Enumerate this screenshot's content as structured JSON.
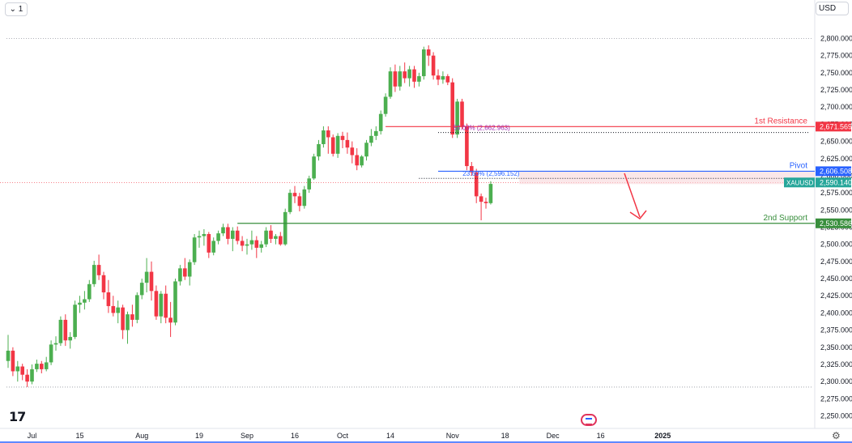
{
  "toolbar": {
    "interval_label": "⌄ 1",
    "currency_label": "USD"
  },
  "chart_data": {
    "type": "candlestick",
    "symbol": "XAUUSD",
    "y_axis": {
      "ylim": [
        2240,
        2810
      ],
      "ticks": [
        2250,
        2275,
        2300,
        2325,
        2350,
        2375,
        2400,
        2425,
        2450,
        2475,
        2500,
        2525,
        2550,
        2575,
        2600,
        2625,
        2650,
        2675,
        2700,
        2725,
        2750,
        2775,
        2800
      ],
      "tick_labels": [
        "2,250.000",
        "2,275.000",
        "2,300.000",
        "2,325.000",
        "2,350.000",
        "2,375.000",
        "2,400.000",
        "2,425.000",
        "2,450.000",
        "2,475.000",
        "2,500.000",
        "2,525.000",
        "2,550.000",
        "2,575.000",
        "2,600.000",
        "2,625.000",
        "2,650.000",
        "2,675.000",
        "2,700.000",
        "2,725.000",
        "2,750.000",
        "2,775.000",
        "2,800.000"
      ]
    },
    "x_axis": {
      "ticks": [
        {
          "label": "Jul",
          "index": 5
        },
        {
          "label": "15",
          "index": 15
        },
        {
          "label": "Aug",
          "index": 28
        },
        {
          "label": "19",
          "index": 40
        },
        {
          "label": "Sep",
          "index": 50
        },
        {
          "label": "16",
          "index": 60
        },
        {
          "label": "Oct",
          "index": 70
        },
        {
          "label": "14",
          "index": 80
        },
        {
          "label": "Nov",
          "index": 93
        },
        {
          "label": "18",
          "index": 104
        },
        {
          "label": "Dec",
          "index": 114
        },
        {
          "label": "16",
          "index": 124
        },
        {
          "label": "2025",
          "index": 137
        }
      ],
      "bold_labels": [
        "2025"
      ]
    },
    "candles": [
      [
        2330,
        2368,
        2320,
        2345
      ],
      [
        2345,
        2350,
        2308,
        2315
      ],
      [
        2315,
        2330,
        2300,
        2322
      ],
      [
        2322,
        2326,
        2302,
        2310
      ],
      [
        2310,
        2318,
        2292,
        2300
      ],
      [
        2300,
        2325,
        2296,
        2318
      ],
      [
        2318,
        2332,
        2314,
        2326
      ],
      [
        2326,
        2330,
        2312,
        2318
      ],
      [
        2318,
        2336,
        2315,
        2328
      ],
      [
        2328,
        2360,
        2324,
        2354
      ],
      [
        2354,
        2366,
        2345,
        2356
      ],
      [
        2356,
        2395,
        2352,
        2390
      ],
      [
        2390,
        2398,
        2352,
        2360
      ],
      [
        2360,
        2372,
        2348,
        2365
      ],
      [
        2365,
        2418,
        2362,
        2412
      ],
      [
        2412,
        2425,
        2400,
        2415
      ],
      [
        2415,
        2432,
        2405,
        2420
      ],
      [
        2420,
        2448,
        2416,
        2442
      ],
      [
        2442,
        2476,
        2438,
        2470
      ],
      [
        2470,
        2485,
        2448,
        2455
      ],
      [
        2455,
        2460,
        2420,
        2430
      ],
      [
        2430,
        2448,
        2400,
        2410
      ],
      [
        2410,
        2425,
        2395,
        2400
      ],
      [
        2400,
        2418,
        2385,
        2408
      ],
      [
        2408,
        2412,
        2362,
        2375
      ],
      [
        2375,
        2402,
        2355,
        2398
      ],
      [
        2398,
        2412,
        2380,
        2390
      ],
      [
        2390,
        2430,
        2385,
        2426
      ],
      [
        2426,
        2450,
        2420,
        2444
      ],
      [
        2444,
        2480,
        2430,
        2460
      ],
      [
        2460,
        2475,
        2418,
        2432
      ],
      [
        2432,
        2440,
        2390,
        2395
      ],
      [
        2395,
        2432,
        2385,
        2428
      ],
      [
        2428,
        2440,
        2385,
        2393
      ],
      [
        2393,
        2416,
        2365,
        2386
      ],
      [
        2386,
        2450,
        2382,
        2446
      ],
      [
        2446,
        2470,
        2440,
        2465
      ],
      [
        2465,
        2480,
        2448,
        2453
      ],
      [
        2453,
        2478,
        2440,
        2474
      ],
      [
        2474,
        2515,
        2470,
        2510
      ],
      [
        2510,
        2520,
        2495,
        2512
      ],
      [
        2512,
        2522,
        2498,
        2515
      ],
      [
        2515,
        2518,
        2480,
        2488
      ],
      [
        2488,
        2510,
        2484,
        2505
      ],
      [
        2505,
        2520,
        2500,
        2516
      ],
      [
        2516,
        2530,
        2512,
        2525
      ],
      [
        2525,
        2530,
        2500,
        2508
      ],
      [
        2508,
        2525,
        2490,
        2520
      ],
      [
        2520,
        2526,
        2500,
        2505
      ],
      [
        2505,
        2512,
        2490,
        2498
      ],
      [
        2498,
        2508,
        2485,
        2500
      ],
      [
        2500,
        2520,
        2492,
        2506
      ],
      [
        2506,
        2512,
        2480,
        2495
      ],
      [
        2495,
        2505,
        2488,
        2500
      ],
      [
        2500,
        2525,
        2496,
        2520
      ],
      [
        2520,
        2528,
        2502,
        2508
      ],
      [
        2508,
        2515,
        2500,
        2512
      ],
      [
        2512,
        2518,
        2498,
        2500
      ],
      [
        2500,
        2552,
        2498,
        2547
      ],
      [
        2547,
        2580,
        2544,
        2575
      ],
      [
        2575,
        2585,
        2560,
        2570
      ],
      [
        2570,
        2575,
        2548,
        2556
      ],
      [
        2556,
        2585,
        2552,
        2580
      ],
      [
        2580,
        2600,
        2575,
        2596
      ],
      [
        2596,
        2632,
        2594,
        2628
      ],
      [
        2628,
        2652,
        2622,
        2646
      ],
      [
        2646,
        2672,
        2641,
        2666
      ],
      [
        2666,
        2672,
        2632,
        2656
      ],
      [
        2656,
        2660,
        2628,
        2632
      ],
      [
        2632,
        2662,
        2626,
        2658
      ],
      [
        2658,
        2664,
        2640,
        2652
      ],
      [
        2652,
        2663,
        2632,
        2641
      ],
      [
        2641,
        2650,
        2618,
        2630
      ],
      [
        2630,
        2640,
        2608,
        2615
      ],
      [
        2615,
        2630,
        2612,
        2628
      ],
      [
        2628,
        2652,
        2622,
        2648
      ],
      [
        2648,
        2668,
        2643,
        2658
      ],
      [
        2658,
        2672,
        2652,
        2665
      ],
      [
        2665,
        2695,
        2660,
        2690
      ],
      [
        2690,
        2720,
        2686,
        2715
      ],
      [
        2715,
        2758,
        2712,
        2752
      ],
      [
        2752,
        2762,
        2722,
        2730
      ],
      [
        2730,
        2760,
        2724,
        2752
      ],
      [
        2752,
        2765,
        2735,
        2742
      ],
      [
        2742,
        2760,
        2730,
        2755
      ],
      [
        2755,
        2760,
        2728,
        2737
      ],
      [
        2737,
        2750,
        2730,
        2745
      ],
      [
        2745,
        2788,
        2740,
        2784
      ],
      [
        2784,
        2790,
        2760,
        2775
      ],
      [
        2775,
        2780,
        2740,
        2746
      ],
      [
        2746,
        2755,
        2732,
        2740
      ],
      [
        2740,
        2752,
        2734,
        2745
      ],
      [
        2745,
        2748,
        2732,
        2736
      ],
      [
        2736,
        2742,
        2655,
        2660
      ],
      [
        2660,
        2712,
        2655,
        2708
      ],
      [
        2708,
        2712,
        2668,
        2672
      ],
      [
        2672,
        2676,
        2608,
        2614
      ],
      [
        2614,
        2620,
        2600,
        2605
      ],
      [
        2605,
        2610,
        2560,
        2570
      ],
      [
        2570,
        2574,
        2535,
        2562
      ],
      [
        2562,
        2568,
        2552,
        2560
      ],
      [
        2560,
        2592,
        2558,
        2588
      ]
    ],
    "levels": [
      {
        "name": "1st Resistance",
        "value": 2671.569,
        "label": "2,671.569",
        "color": "#f23645"
      },
      {
        "name": "Pivot",
        "value": 2606.508,
        "label": "2,606.508",
        "color": "#2962ff"
      },
      {
        "name": "2nd Support",
        "value": 2530.586,
        "label": "2,530.586",
        "color": "#388e3c"
      }
    ],
    "fibonacci": [
      {
        "label": "50.00% (2,662.963)",
        "value": 2662.963,
        "color": "#9c27b0"
      },
      {
        "label": "23.60% (2,596.152)",
        "value": 2596.152,
        "color": "#2962ff"
      }
    ],
    "price_marker": {
      "symbol": "XAUUSD",
      "value": 2590.14,
      "label": "2,590.140",
      "color": "#26a69a"
    },
    "dotted_lines": [
      2800,
      2292
    ],
    "colors": {
      "up": "#4caf50",
      "down": "#f23645",
      "grid": "#f0f3fa",
      "axis_text": "#131722"
    }
  }
}
